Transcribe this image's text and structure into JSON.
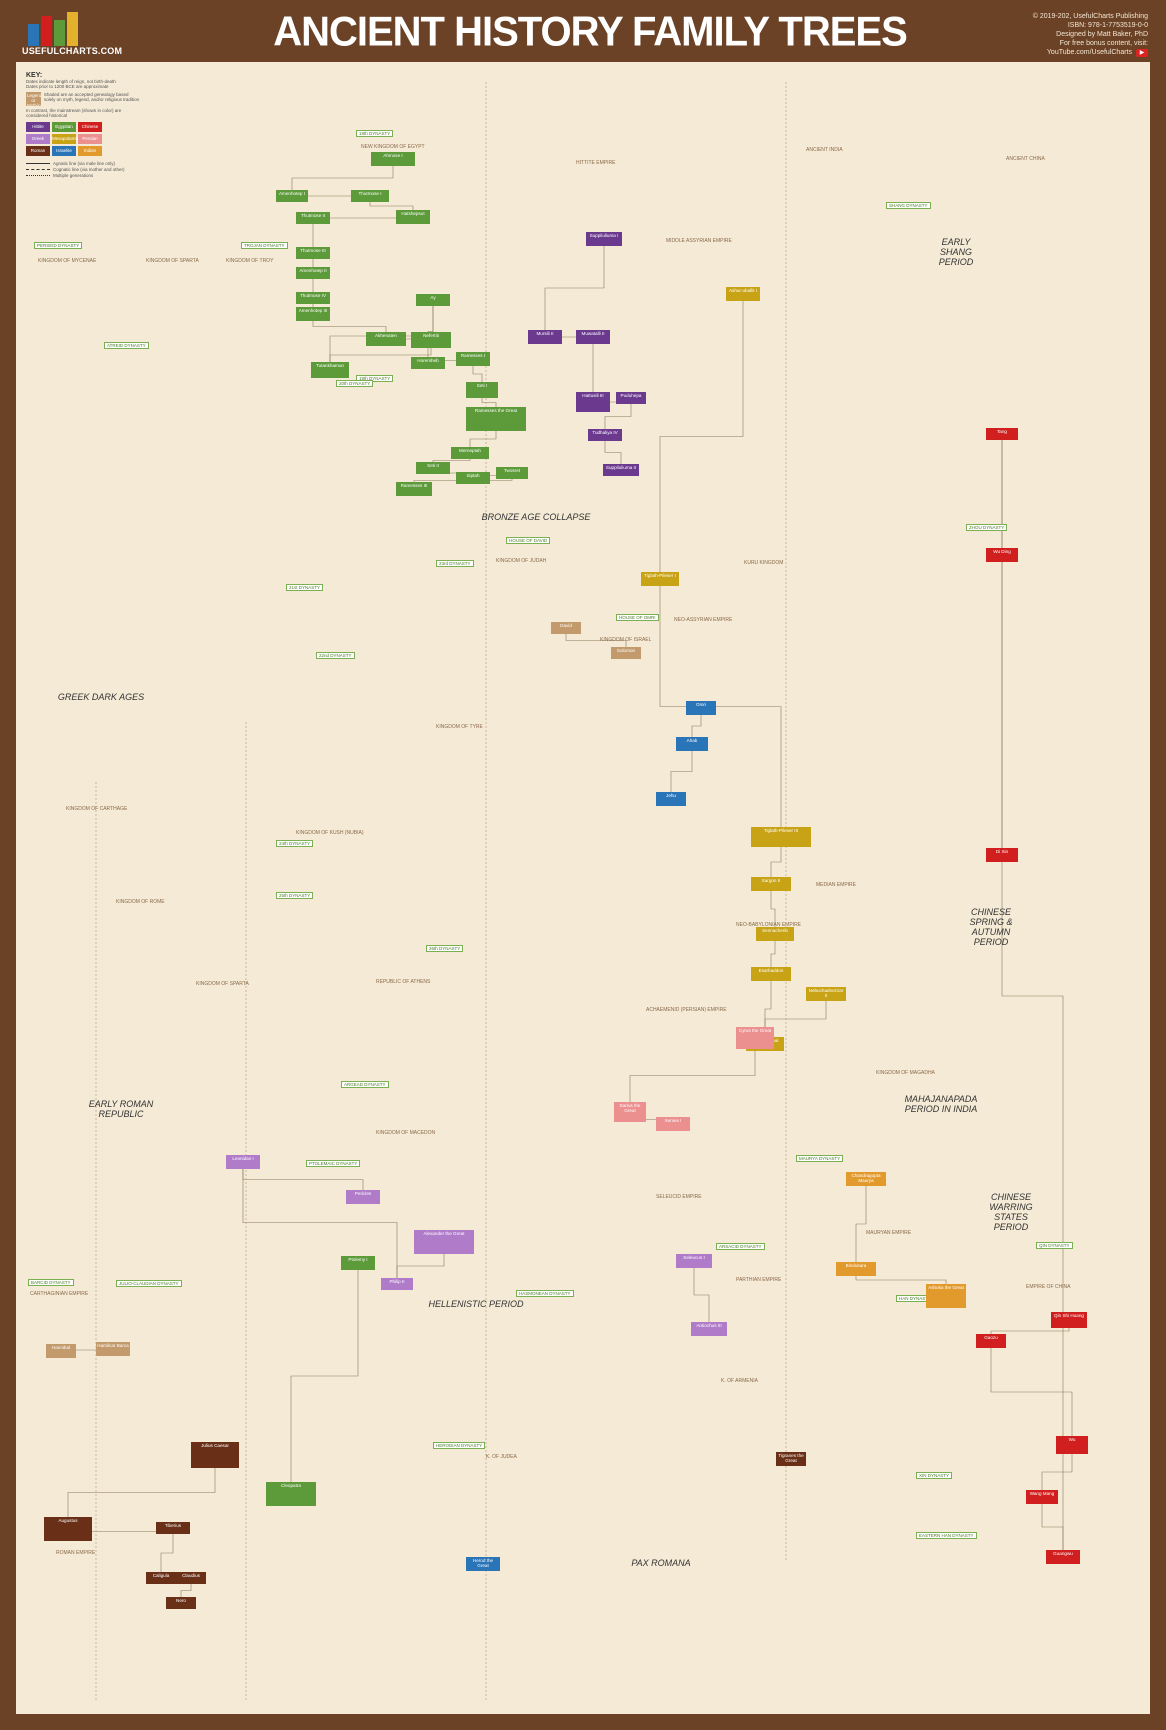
{
  "header": {
    "logo_text": "USEFULCHARTS.COM",
    "title": "ANCIENT HISTORY FAMILY TREES",
    "credits": [
      "© 2019-202, UsefulCharts Publishing",
      "ISBN: 978-1-7753519-0-0",
      "Designed by Matt Baker, PhD",
      "For free bonus content, visit:",
      "YouTube.com/UsefulCharts"
    ]
  },
  "key": {
    "title": "KEY:",
    "notes": [
      "Dates indicate length of reign, not birth-death",
      "Dates prior to 1200 BCE are approximate"
    ],
    "legendary_label": "Legendary or Mythical",
    "legendary_note": "Shaded are an accepted genealogy based solely on myth, legend, and/or religious tradition",
    "contrast_note": "In contrast, the mainstream (shown in color) are considered historical",
    "categories": [
      {
        "label": "Hittite",
        "color": "#6b3a8f"
      },
      {
        "label": "Egyptian",
        "color": "#5d9a3a"
      },
      {
        "label": "Chinese",
        "color": "#d11f1f"
      },
      {
        "label": "Greek",
        "color": "#b07cc9"
      },
      {
        "label": "Mesopotamian",
        "color": "#c8a316"
      },
      {
        "label": "Persian",
        "color": "#ec8f8f"
      },
      {
        "label": "Roman",
        "color": "#6a2f17"
      },
      {
        "label": "Israelite",
        "color": "#2a74b8"
      },
      {
        "label": "Indian",
        "color": "#e39a2c"
      }
    ],
    "line_notes": [
      "Agnatic line (via male line only)",
      "Cognatic line (via mother and other)",
      "Multiple generations"
    ]
  },
  "regions": [
    {
      "text": "NEW KINGDOM OF EGYPT"
    },
    {
      "text": "HITTITE EMPIRE"
    },
    {
      "text": "MIDDLE ASSYRIAN EMPIRE"
    },
    {
      "text": "ANCIENT INDIA"
    },
    {
      "text": "ANCIENT CHINA"
    },
    {
      "text": "KINGDOM OF MYCENAE"
    },
    {
      "text": "KINGDOM OF SPARTA"
    },
    {
      "text": "KINGDOM OF TROY"
    },
    {
      "text": "KINGDOM OF JUDAH"
    },
    {
      "text": "KINGDOM OF ISRAEL"
    },
    {
      "text": "NEO-ASSYRIAN EMPIRE"
    },
    {
      "text": "KURU KINGDOM"
    },
    {
      "text": "KINGDOM OF TYRE"
    },
    {
      "text": "KINGDOM OF KUSH (NUBIA)"
    },
    {
      "text": "KINGDOM OF CARTHAGE"
    },
    {
      "text": "KINGDOM OF ROME"
    },
    {
      "text": "KINGDOM OF SPARTA"
    },
    {
      "text": "REPUBLIC OF ATHENS"
    },
    {
      "text": "ACHAEMENID (PERSIAN) EMPIRE"
    },
    {
      "text": "NEO-BABYLONIAN EMPIRE"
    },
    {
      "text": "MEDIAN EMPIRE"
    },
    {
      "text": "KINGDOM OF MAGADHA"
    },
    {
      "text": "KINGDOM OF MACEDON"
    },
    {
      "text": "SELEUCID EMPIRE"
    },
    {
      "text": "MAURYAN EMPIRE"
    },
    {
      "text": "PARTHIAN EMPIRE"
    },
    {
      "text": "EMPIRE OF CHINA"
    },
    {
      "text": "K. OF ARMENIA"
    },
    {
      "text": "K. OF JUDEA"
    },
    {
      "text": "ROMAN EMPIRE"
    },
    {
      "text": "CARTHAGINIAN EMPIRE"
    }
  ],
  "eras": [
    {
      "text": "EARLY SHANG PERIOD"
    },
    {
      "text": "BRONZE AGE COLLAPSE"
    },
    {
      "text": "GREEK DARK AGES"
    },
    {
      "text": "CHINESE SPRING & AUTUMN PERIOD"
    },
    {
      "text": "EARLY ROMAN REPUBLIC"
    },
    {
      "text": "MAHAJANAPADA PERIOD IN INDIA"
    },
    {
      "text": "CHINESE WARRING STATES PERIOD"
    },
    {
      "text": "HELLENISTIC PERIOD"
    },
    {
      "text": "PAX ROMANA"
    }
  ],
  "dynasties": [
    {
      "text": "18th DYNASTY"
    },
    {
      "text": "19th DYNASTY"
    },
    {
      "text": "20th DYNASTY"
    },
    {
      "text": "21st DYNASTY"
    },
    {
      "text": "22nd DYNASTY"
    },
    {
      "text": "23rd DYNASTY"
    },
    {
      "text": "24th DYNASTY"
    },
    {
      "text": "25th DYNASTY"
    },
    {
      "text": "26th DYNASTY"
    },
    {
      "text": "PERSEID DYNASTY"
    },
    {
      "text": "ATREID DYNASTY"
    },
    {
      "text": "TROJAN DYNASTY"
    },
    {
      "text": "HOUSE OF DAVID"
    },
    {
      "text": "HOUSE OF OMRI"
    },
    {
      "text": "SHANG DYNASTY"
    },
    {
      "text": "ZHOU DYNASTY"
    },
    {
      "text": "QIN DYNASTY"
    },
    {
      "text": "HAN DYNASTY"
    },
    {
      "text": "XIN DYNASTY"
    },
    {
      "text": "EASTERN HAN DYNASTY"
    },
    {
      "text": "PTOLEMAIC DYNASTY"
    },
    {
      "text": "JULIO-CLAUDIAN DYNASTY"
    },
    {
      "text": "BARCID DYNASTY"
    },
    {
      "text": "ARGEAD DYNASTY"
    },
    {
      "text": "MAURYA DYNASTY"
    },
    {
      "text": "ARSACID DYNASTY"
    },
    {
      "text": "HASMONEAN DYNASTY"
    },
    {
      "text": "HERODIAN DYNASTY"
    }
  ],
  "rulers": [
    {
      "name": "Ahmose I",
      "color": "green"
    },
    {
      "name": "Amenhotep I",
      "color": "green"
    },
    {
      "name": "Thutmose I",
      "color": "green"
    },
    {
      "name": "Hatshepsut",
      "color": "green"
    },
    {
      "name": "Thutmose II",
      "color": "green"
    },
    {
      "name": "Thutmose III",
      "color": "green"
    },
    {
      "name": "Amenhotep II",
      "color": "green"
    },
    {
      "name": "Thutmose IV",
      "color": "green"
    },
    {
      "name": "Amenhotep III",
      "color": "green"
    },
    {
      "name": "Akhenaten",
      "color": "green"
    },
    {
      "name": "Nefertiti",
      "color": "green"
    },
    {
      "name": "Tutankhamun",
      "color": "green"
    },
    {
      "name": "Ay",
      "color": "green"
    },
    {
      "name": "Horemheb",
      "color": "green"
    },
    {
      "name": "Ramesses I",
      "color": "green"
    },
    {
      "name": "Seti I",
      "color": "green"
    },
    {
      "name": "Ramesses the Great",
      "color": "green"
    },
    {
      "name": "Merneptah",
      "color": "green"
    },
    {
      "name": "Seti II",
      "color": "green"
    },
    {
      "name": "Siptah",
      "color": "green"
    },
    {
      "name": "Twosret",
      "color": "green"
    },
    {
      "name": "Ramesses III",
      "color": "green"
    },
    {
      "name": "Suppiluliuma I",
      "color": "purple"
    },
    {
      "name": "Mursili II",
      "color": "purple"
    },
    {
      "name": "Muwatalli II",
      "color": "purple"
    },
    {
      "name": "Hattusili III",
      "color": "purple"
    },
    {
      "name": "Puduhepa",
      "color": "purple"
    },
    {
      "name": "Tudhaliya IV",
      "color": "purple"
    },
    {
      "name": "Suppiluliuma II",
      "color": "purple"
    },
    {
      "name": "Ashur-uballit I",
      "color": "gold"
    },
    {
      "name": "Tiglath-Pileser I",
      "color": "gold"
    },
    {
      "name": "Tiglath-Pileser III",
      "color": "gold"
    },
    {
      "name": "Sargon II",
      "color": "gold"
    },
    {
      "name": "Sennacherib",
      "color": "gold"
    },
    {
      "name": "Esarhaddon",
      "color": "gold"
    },
    {
      "name": "Ashurbanipal",
      "color": "gold"
    },
    {
      "name": "Nebuchadnezzar II",
      "color": "gold"
    },
    {
      "name": "David",
      "color": "brown"
    },
    {
      "name": "Solomon",
      "color": "brown"
    },
    {
      "name": "Omri",
      "color": "blue"
    },
    {
      "name": "Ahab",
      "color": "blue"
    },
    {
      "name": "Jehu",
      "color": "blue"
    },
    {
      "name": "Cyrus the Great",
      "color": "pink"
    },
    {
      "name": "Darius the Great",
      "color": "pink"
    },
    {
      "name": "Xerxes I",
      "color": "pink"
    },
    {
      "name": "Alexander the Great",
      "color": "lav"
    },
    {
      "name": "Philip II",
      "color": "lav"
    },
    {
      "name": "Leonidas I",
      "color": "lav"
    },
    {
      "name": "Pericles",
      "color": "lav"
    },
    {
      "name": "Ptolemy I",
      "color": "green"
    },
    {
      "name": "Cleopatra",
      "color": "green"
    },
    {
      "name": "Seleucus I",
      "color": "lav"
    },
    {
      "name": "Antiochus III",
      "color": "lav"
    },
    {
      "name": "Chandragupta Maurya",
      "color": "orange"
    },
    {
      "name": "Bindusara",
      "color": "orange"
    },
    {
      "name": "Ashoka the Great",
      "color": "orange"
    },
    {
      "name": "Qin Shi Huang",
      "color": "red"
    },
    {
      "name": "Gaozu",
      "color": "red"
    },
    {
      "name": "Wu",
      "color": "red"
    },
    {
      "name": "Wang Mang",
      "color": "red"
    },
    {
      "name": "Guangwu",
      "color": "red"
    },
    {
      "name": "Tang",
      "color": "red"
    },
    {
      "name": "Wu Ding",
      "color": "red"
    },
    {
      "name": "Di Xin",
      "color": "red"
    },
    {
      "name": "Julius Caesar",
      "color": "dark"
    },
    {
      "name": "Augustus",
      "color": "dark"
    },
    {
      "name": "Tiberius",
      "color": "dark"
    },
    {
      "name": "Caligula",
      "color": "dark"
    },
    {
      "name": "Claudius",
      "color": "dark"
    },
    {
      "name": "Nero",
      "color": "dark"
    },
    {
      "name": "Hannibal",
      "color": "brown"
    },
    {
      "name": "Hamilcar Barca",
      "color": "brown"
    },
    {
      "name": "Tigranes the Great",
      "color": "dark"
    },
    {
      "name": "Herod the Great",
      "color": "blue"
    }
  ]
}
